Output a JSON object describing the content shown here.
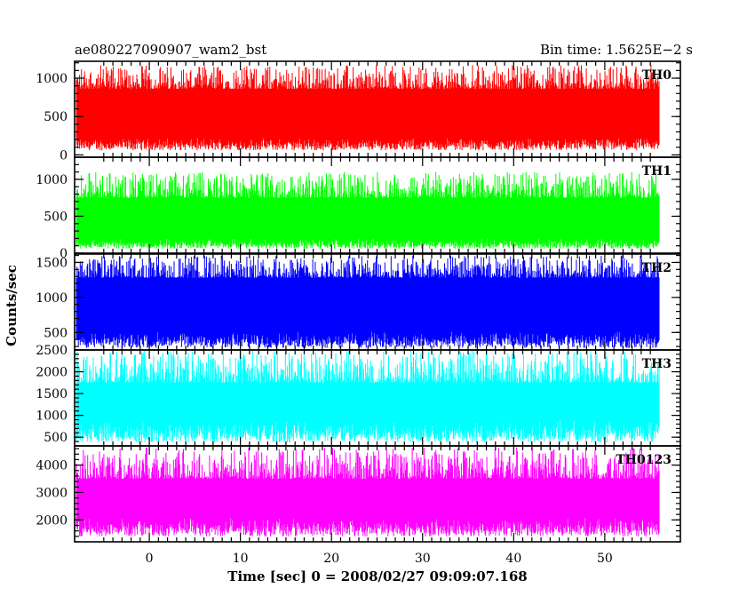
{
  "chart_data": {
    "type": "line",
    "title_left": "ae080227090907_wam2_bst",
    "title_right": "Bin time: 1.5625E−2 s",
    "xlabel": "Time [sec] 0 = 2008/02/27 09:09:07.168",
    "ylabel": "Counts/sec",
    "xlim": [
      -8.2,
      58.3
    ],
    "x_range_data": [
      -8.0,
      56.0
    ],
    "x_ticks": [
      0,
      10,
      20,
      30,
      40,
      50
    ],
    "bin_time": 0.015625,
    "panels": [
      {
        "name": "TH0",
        "color": "#ff0000",
        "ylim": [
          -30,
          1220
        ],
        "y_ticks": [
          0,
          500,
          1000
        ],
        "y_tick_labels": [
          "0",
          "500",
          "1000"
        ],
        "band": [
          60,
          1170
        ],
        "base": [
          230,
          860
        ]
      },
      {
        "name": "TH1",
        "color": "#00ff00",
        "ylim": [
          0,
          1300
        ],
        "y_ticks": [
          0,
          500,
          1000
        ],
        "y_tick_labels": [
          "0",
          "500",
          "1000"
        ],
        "band": [
          60,
          1100
        ],
        "base": [
          210,
          750
        ]
      },
      {
        "name": "TH2",
        "color": "#0000ff",
        "ylim": [
          250,
          1620
        ],
        "y_ticks": [
          500,
          1000,
          1500
        ],
        "y_tick_labels": [
          "500",
          "1000",
          "1500"
        ],
        "band": [
          280,
          1600
        ],
        "base": [
          520,
          1280
        ]
      },
      {
        "name": "TH3",
        "color": "#00ffff",
        "ylim": [
          300,
          2500
        ],
        "y_ticks": [
          500,
          1000,
          1500,
          2000,
          2500
        ],
        "y_tick_labels": [
          "500",
          "1000",
          "1500",
          "2000",
          "2500"
        ],
        "band": [
          380,
          2500
        ],
        "base": [
          900,
          1750
        ]
      },
      {
        "name": "TH0123",
        "color": "#ff00ff",
        "ylim": [
          1200,
          4700
        ],
        "y_ticks": [
          2000,
          3000,
          4000
        ],
        "y_tick_labels": [
          "2000",
          "3000",
          "4000"
        ],
        "band": [
          1400,
          4650
        ],
        "base": [
          2100,
          3500
        ]
      }
    ]
  }
}
